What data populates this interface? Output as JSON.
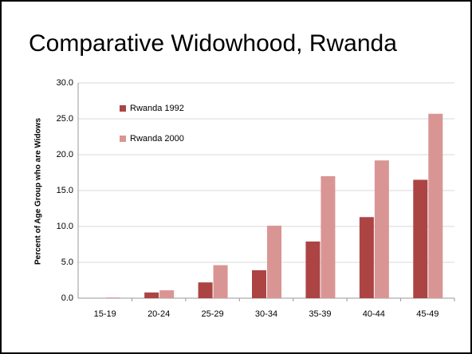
{
  "chart_data": {
    "type": "bar",
    "title": "Comparative Widowhood, Rwanda",
    "y_label": "Percent of Age Group who are Widows",
    "categories": [
      "15-19",
      "20-24",
      "25-29",
      "30-34",
      "35-39",
      "40-44",
      "45-49"
    ],
    "series": [
      {
        "name": "Rwanda 1992",
        "color": "#ac4444",
        "values": [
          0.0,
          0.8,
          2.2,
          3.9,
          7.9,
          11.3,
          16.5
        ]
      },
      {
        "name": "Rwanda 2000",
        "color": "#d99594",
        "values": [
          0.1,
          1.1,
          4.6,
          10.1,
          17.0,
          19.2,
          25.7
        ]
      }
    ],
    "ylim": [
      0,
      30
    ],
    "yticks": [
      {
        "value": 0,
        "label": "0.0"
      },
      {
        "value": 5,
        "label": "5.0"
      },
      {
        "value": 10,
        "label": "10.0"
      },
      {
        "value": 15,
        "label": "15.0"
      },
      {
        "value": 20,
        "label": "20.0"
      },
      {
        "value": 25,
        "label": "25.0"
      },
      {
        "value": 30,
        "label": "30.0"
      }
    ],
    "grid": true,
    "legend": "upper left"
  }
}
